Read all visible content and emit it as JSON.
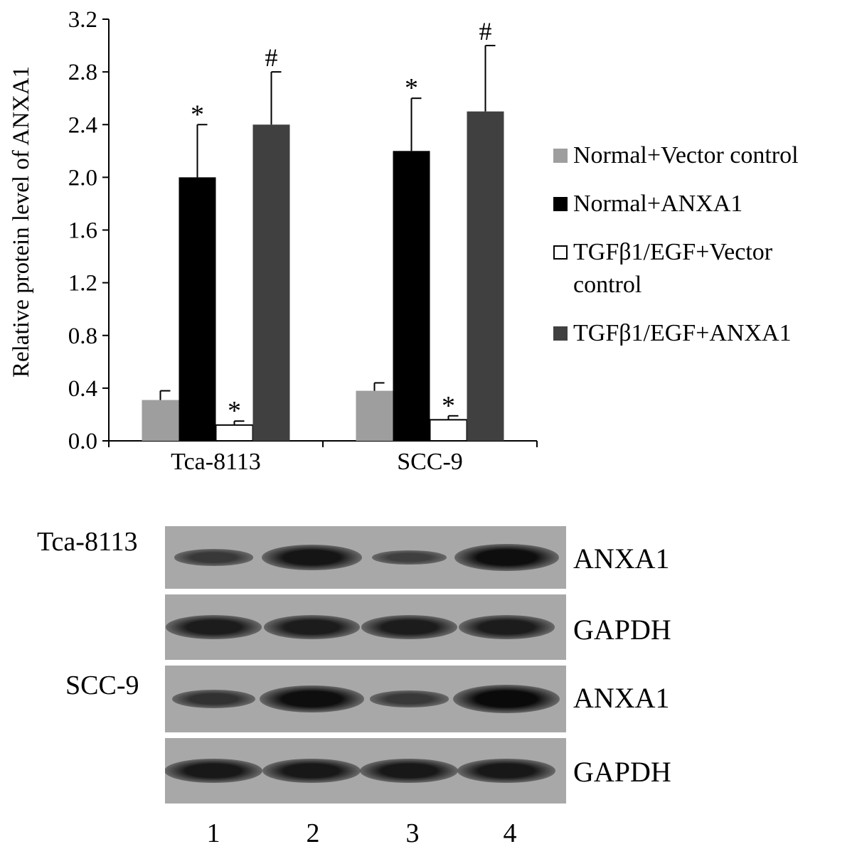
{
  "chart_data": {
    "type": "bar",
    "ylabel": "Relative protein level of ANXA1",
    "ylim": [
      0,
      3.2
    ],
    "yticks": [
      "0.0",
      "0.4",
      "0.8",
      "1.2",
      "1.6",
      "2.0",
      "2.4",
      "2.8",
      "3.2"
    ],
    "categories": [
      "Tca-8113",
      "SCC-9"
    ],
    "series": [
      {
        "name": "Normal+Vector control",
        "color": "#9e9e9e",
        "values": [
          0.31,
          0.38
        ],
        "errors": [
          0.07,
          0.06
        ],
        "annotations": [
          "",
          ""
        ]
      },
      {
        "name": "Normal+ANXA1",
        "color": "#000000",
        "values": [
          2.0,
          2.2
        ],
        "errors": [
          0.4,
          0.4
        ],
        "annotations": [
          "*",
          "*"
        ]
      },
      {
        "name": "TGFβ1/EGF+Vector control",
        "color": "#ffffff",
        "values": [
          0.12,
          0.16
        ],
        "errors": [
          0.03,
          0.03
        ],
        "annotations": [
          "*",
          "*"
        ]
      },
      {
        "name": "TGFβ1/EGF+ANXA1",
        "color": "#404040",
        "values": [
          2.4,
          2.5
        ],
        "errors": [
          0.4,
          0.5
        ],
        "annotations": [
          "#",
          "#"
        ]
      }
    ],
    "legend_position": "right",
    "grid": false
  },
  "legend": {
    "items": [
      {
        "label": "Normal+Vector control",
        "color": "#9e9e9e"
      },
      {
        "label": "Normal+ANXA1",
        "color": "#000000"
      },
      {
        "label": "TGFβ1/EGF+Vector control",
        "color": "#ffffff"
      },
      {
        "label": "TGFβ1/EGF+ANXA1",
        "color": "#404040"
      }
    ]
  },
  "western_blot": {
    "cell_lines": [
      {
        "name": "Tca-8113",
        "rows": [
          {
            "protein": "ANXA1",
            "band_intensity": [
              0.35,
              0.85,
              0.25,
              0.95
            ]
          },
          {
            "protein": "GAPDH",
            "band_intensity": [
              0.75,
              0.75,
              0.75,
              0.75
            ]
          }
        ]
      },
      {
        "name": "SCC-9",
        "rows": [
          {
            "protein": "ANXA1",
            "band_intensity": [
              0.45,
              0.95,
              0.35,
              1.0
            ]
          },
          {
            "protein": "GAPDH",
            "band_intensity": [
              0.8,
              0.8,
              0.8,
              0.8
            ]
          }
        ]
      }
    ],
    "lanes": [
      "1",
      "2",
      "3",
      "4"
    ]
  }
}
